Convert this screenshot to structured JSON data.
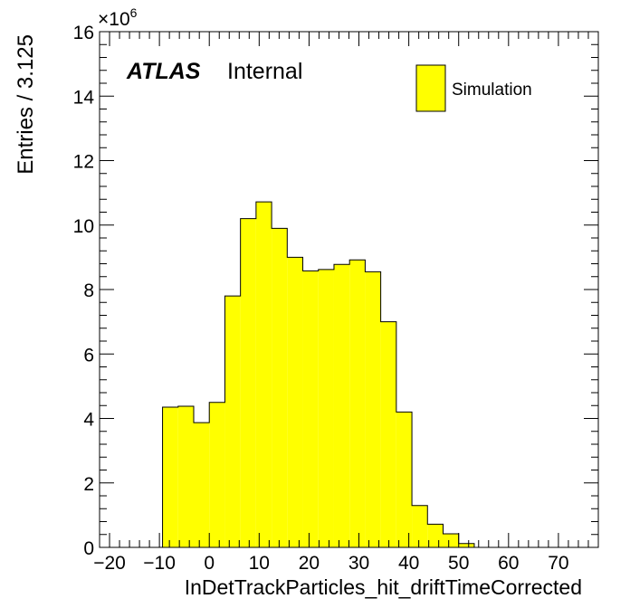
{
  "chart_data": {
    "type": "bar",
    "histogram": true,
    "xlabel": "InDetTrackParticles_hit_driftTimeCorrected",
    "ylabel": "Entries / 3.125",
    "y_multiplier_base": "×10",
    "y_multiplier_exp": "6",
    "xlim": [
      -22,
      78
    ],
    "ylim": [
      0,
      16
    ],
    "x_ticks": [
      -20,
      -10,
      0,
      10,
      20,
      30,
      40,
      50,
      60,
      70
    ],
    "x_tick_labels": [
      "−20",
      "−10",
      "0",
      "10",
      "20",
      "30",
      "40",
      "50",
      "60",
      "70"
    ],
    "y_ticks": [
      0,
      2,
      4,
      6,
      8,
      10,
      12,
      14,
      16
    ],
    "y_tick_labels": [
      "0",
      "2",
      "4",
      "6",
      "8",
      "10",
      "12",
      "14",
      "16"
    ],
    "bin_width": 3.125,
    "bin_low_edges": [
      -9.375,
      -6.25,
      -3.125,
      0,
      3.125,
      6.25,
      9.375,
      12.5,
      15.625,
      18.75,
      21.875,
      25,
      28.125,
      31.25,
      34.375,
      37.5,
      40.625,
      43.75,
      46.875,
      50
    ],
    "values": [
      4.35,
      4.38,
      3.87,
      4.5,
      7.8,
      10.2,
      10.72,
      9.9,
      9.0,
      8.58,
      8.62,
      8.78,
      8.92,
      8.55,
      7.0,
      4.2,
      1.3,
      0.72,
      0.42,
      0.12
    ],
    "series": [
      {
        "name": "Simulation",
        "color": "#ffff00"
      }
    ],
    "legend_position": "top-right",
    "grid": false,
    "label_brand": "ATLAS",
    "label_status": "Internal"
  }
}
